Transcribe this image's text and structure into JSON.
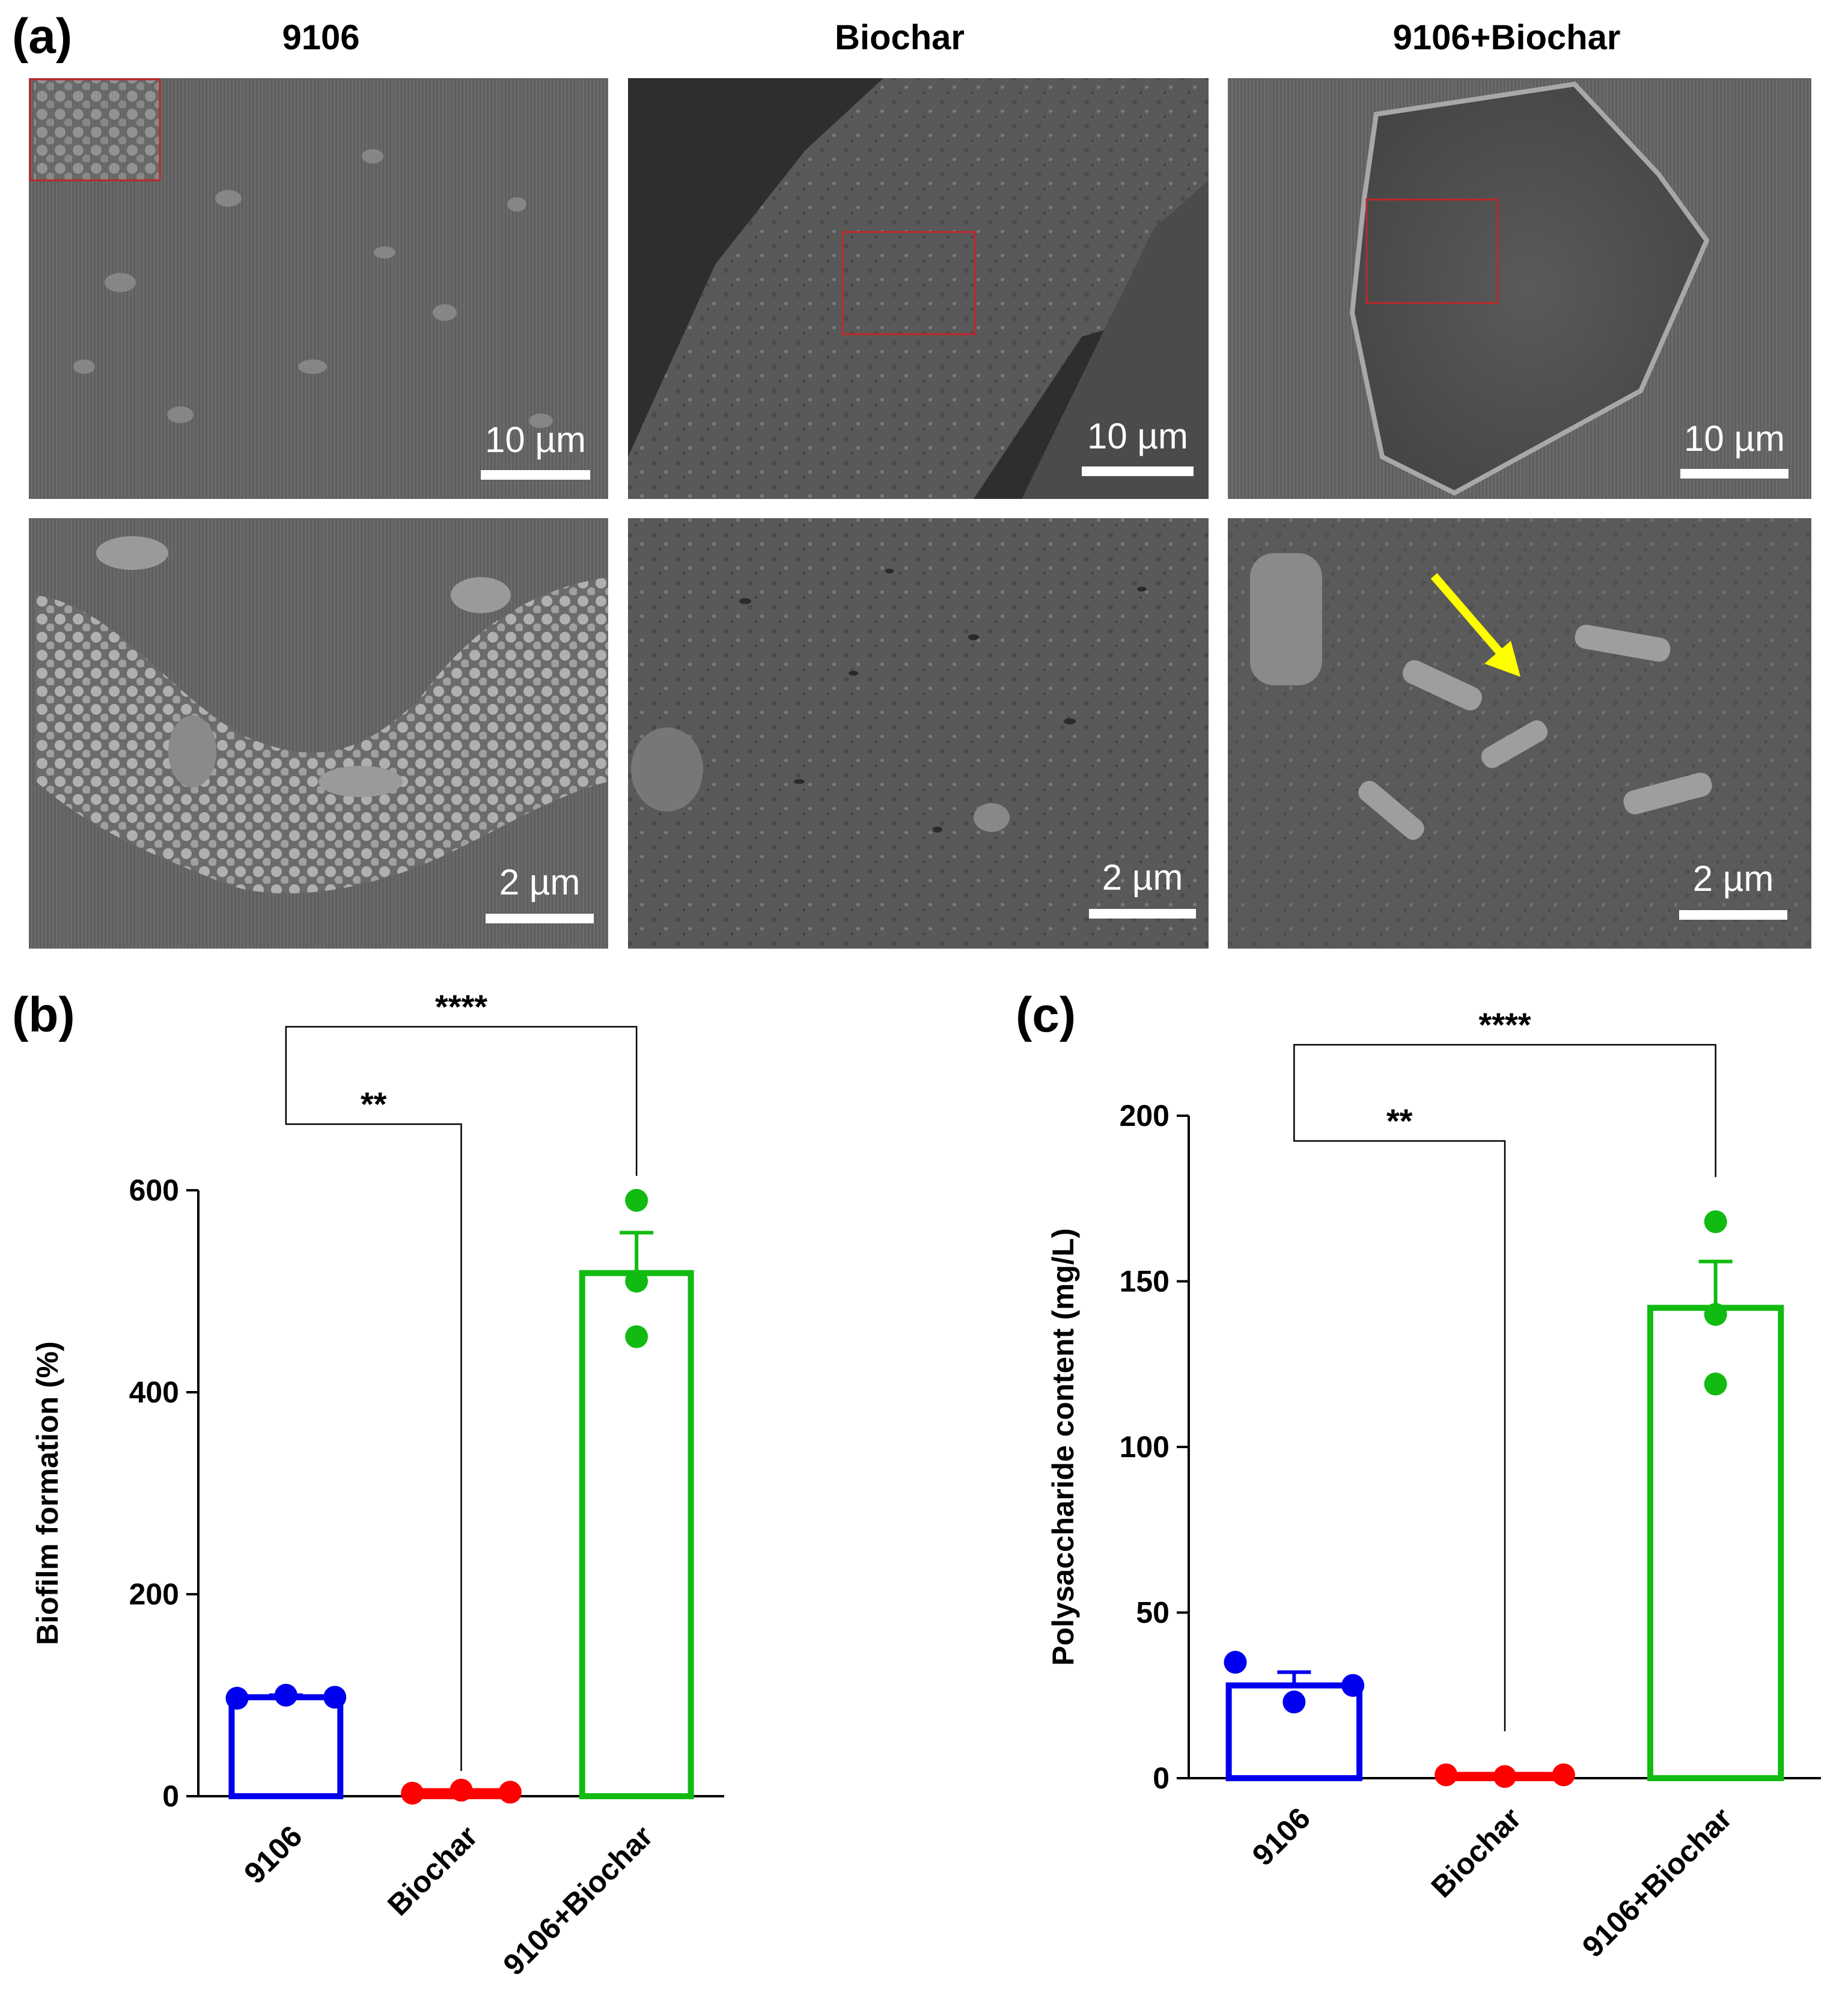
{
  "panels": {
    "a": "(a)",
    "b": "(b)",
    "c": "(c)"
  },
  "micrographs": {
    "column_titles": [
      "9106",
      "Biochar",
      "9106+Biochar"
    ],
    "top_row_scale": "10 µm",
    "bottom_row_scale": "2 µm",
    "inset_box_color": "#c0262a",
    "arrow_color": "#ffff00"
  },
  "chart_data": [
    {
      "type": "bar",
      "panel": "(b)",
      "categories": [
        "9106",
        "Biochar",
        "9106+Biochar"
      ],
      "colors": [
        "#0000ee",
        "#ff0000",
        "#11bb11"
      ],
      "means": [
        98,
        5,
        518
      ],
      "sem": [
        2,
        1,
        40
      ],
      "points": [
        [
          97,
          100,
          98
        ],
        [
          3,
          6,
          4
        ],
        [
          590,
          510,
          455
        ]
      ],
      "ylabel": "Biofilm formation (%)",
      "ylim": [
        0,
        600
      ],
      "yticks": [
        0,
        200,
        400,
        600
      ],
      "comparisons": [
        {
          "from": 0,
          "to": 1,
          "label": "**"
        },
        {
          "from": 0,
          "to": 2,
          "label": "****"
        }
      ]
    },
    {
      "type": "bar",
      "panel": "(c)",
      "categories": [
        "9106",
        "Biochar",
        "9106+Biochar"
      ],
      "colors": [
        "#0000ee",
        "#ff0000",
        "#11bb11"
      ],
      "means": [
        28,
        1,
        142
      ],
      "sem": [
        4,
        0.3,
        14
      ],
      "points": [
        [
          35,
          23,
          28
        ],
        [
          1,
          0.5,
          1
        ],
        [
          168,
          140,
          119
        ]
      ],
      "ylabel": "Polysaccharide content (mg/L)",
      "ylim": [
        0,
        200
      ],
      "yticks": [
        0,
        50,
        100,
        150,
        200
      ],
      "comparisons": [
        {
          "from": 0,
          "to": 1,
          "label": "**"
        },
        {
          "from": 0,
          "to": 2,
          "label": "****"
        }
      ]
    }
  ]
}
